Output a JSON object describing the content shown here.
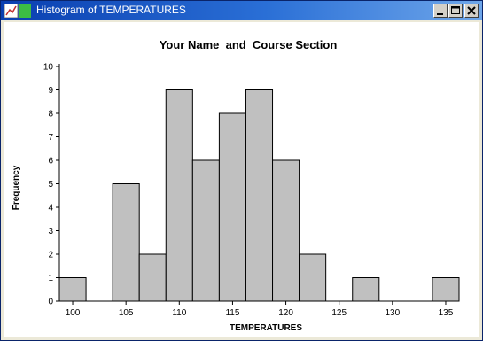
{
  "window": {
    "title": "Histogram of TEMPERATURES"
  },
  "chart_data": {
    "type": "bar",
    "title": "Your Name  and  Course Section",
    "xlabel": "TEMPERATURES",
    "ylabel": "Frequency",
    "bin_width": 2.5,
    "bins": [
      {
        "start": 98.75,
        "end": 101.25,
        "count": 1
      },
      {
        "start": 101.25,
        "end": 103.75,
        "count": 0
      },
      {
        "start": 103.75,
        "end": 106.25,
        "count": 5
      },
      {
        "start": 106.25,
        "end": 108.75,
        "count": 2
      },
      {
        "start": 108.75,
        "end": 111.25,
        "count": 9
      },
      {
        "start": 111.25,
        "end": 113.75,
        "count": 6
      },
      {
        "start": 113.75,
        "end": 116.25,
        "count": 8
      },
      {
        "start": 116.25,
        "end": 118.75,
        "count": 9
      },
      {
        "start": 118.75,
        "end": 121.25,
        "count": 6
      },
      {
        "start": 121.25,
        "end": 123.75,
        "count": 2
      },
      {
        "start": 123.75,
        "end": 126.25,
        "count": 0
      },
      {
        "start": 126.25,
        "end": 128.75,
        "count": 1
      },
      {
        "start": 128.75,
        "end": 131.25,
        "count": 0
      },
      {
        "start": 131.25,
        "end": 133.75,
        "count": 0
      },
      {
        "start": 133.75,
        "end": 136.25,
        "count": 1
      }
    ],
    "xticks": [
      "100",
      "105",
      "110",
      "115",
      "120",
      "125",
      "130",
      "135"
    ],
    "yticks": [
      "0",
      "1",
      "2",
      "3",
      "4",
      "5",
      "6",
      "7",
      "8",
      "9",
      "10"
    ],
    "xlim": [
      98.75,
      136.25
    ],
    "ylim": [
      0,
      10
    ],
    "bar_color": "#c0c0c0",
    "bar_edge_color": "#000000",
    "grid": false,
    "legend": "none"
  }
}
